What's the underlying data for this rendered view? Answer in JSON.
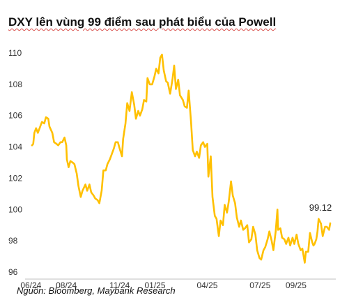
{
  "chart_data": {
    "type": "line",
    "title": "DXY lên vùng 99 điểm sau phát biểu của Powell",
    "source": "Nguồn: Bloomberg, Maybank Research",
    "color": "#FFC000",
    "axis_color": "#BFBFBF",
    "xlabel": "",
    "ylabel": "",
    "ylim": [
      96,
      110
    ],
    "y_ticks": [
      96,
      98,
      100,
      102,
      104,
      106,
      108,
      110
    ],
    "x_ticks": [
      "06/24",
      "08/24",
      "11/24",
      "01/25",
      "04/25",
      "07/25",
      "09/25"
    ],
    "x_tick_dates": [
      "2024-06-01",
      "2024-08-01",
      "2024-11-01",
      "2025-01-01",
      "2025-04-01",
      "2025-07-01",
      "2025-09-01"
    ],
    "grid": false,
    "legend": "none",
    "end_label": "99.12",
    "series": [
      {
        "points": [
          [
            "2024-06-03",
            104.1
          ],
          [
            "2024-06-05",
            104.2
          ],
          [
            "2024-06-07",
            104.9
          ],
          [
            "2024-06-10",
            105.2
          ],
          [
            "2024-06-13",
            104.9
          ],
          [
            "2024-06-17",
            105.3
          ],
          [
            "2024-06-20",
            105.6
          ],
          [
            "2024-06-24",
            105.5
          ],
          [
            "2024-06-27",
            105.9
          ],
          [
            "2024-07-01",
            105.8
          ],
          [
            "2024-07-03",
            105.3
          ],
          [
            "2024-07-08",
            104.9
          ],
          [
            "2024-07-11",
            104.3
          ],
          [
            "2024-07-15",
            104.2
          ],
          [
            "2024-07-18",
            104.1
          ],
          [
            "2024-07-22",
            104.3
          ],
          [
            "2024-07-25",
            104.3
          ],
          [
            "2024-07-29",
            104.6
          ],
          [
            "2024-08-01",
            104.1
          ],
          [
            "2024-08-02",
            103.2
          ],
          [
            "2024-08-05",
            102.7
          ],
          [
            "2024-08-08",
            103.1
          ],
          [
            "2024-08-12",
            103.0
          ],
          [
            "2024-08-15",
            102.9
          ],
          [
            "2024-08-19",
            102.3
          ],
          [
            "2024-08-22",
            101.5
          ],
          [
            "2024-08-26",
            100.8
          ],
          [
            "2024-08-29",
            101.2
          ],
          [
            "2024-09-03",
            101.6
          ],
          [
            "2024-09-06",
            101.2
          ],
          [
            "2024-09-10",
            101.6
          ],
          [
            "2024-09-13",
            101.1
          ],
          [
            "2024-09-17",
            100.9
          ],
          [
            "2024-09-20",
            100.7
          ],
          [
            "2024-09-24",
            100.6
          ],
          [
            "2024-09-27",
            100.4
          ],
          [
            "2024-10-01",
            101.2
          ],
          [
            "2024-10-04",
            102.5
          ],
          [
            "2024-10-08",
            102.5
          ],
          [
            "2024-10-11",
            102.9
          ],
          [
            "2024-10-15",
            103.2
          ],
          [
            "2024-10-18",
            103.5
          ],
          [
            "2024-10-22",
            103.9
          ],
          [
            "2024-10-25",
            104.3
          ],
          [
            "2024-10-29",
            104.3
          ],
          [
            "2024-11-01",
            103.9
          ],
          [
            "2024-11-05",
            103.4
          ],
          [
            "2024-11-07",
            104.5
          ],
          [
            "2024-11-11",
            105.5
          ],
          [
            "2024-11-14",
            106.8
          ],
          [
            "2024-11-18",
            106.3
          ],
          [
            "2024-11-22",
            107.5
          ],
          [
            "2024-11-26",
            106.7
          ],
          [
            "2024-11-29",
            105.8
          ],
          [
            "2024-12-03",
            106.3
          ],
          [
            "2024-12-06",
            106.0
          ],
          [
            "2024-12-10",
            106.4
          ],
          [
            "2024-12-13",
            107.0
          ],
          [
            "2024-12-17",
            106.9
          ],
          [
            "2024-12-19",
            108.4
          ],
          [
            "2024-12-23",
            108.0
          ],
          [
            "2024-12-27",
            108.0
          ],
          [
            "2024-12-31",
            108.5
          ],
          [
            "2025-01-03",
            109.0
          ],
          [
            "2025-01-07",
            108.7
          ],
          [
            "2025-01-10",
            109.7
          ],
          [
            "2025-01-13",
            109.9
          ],
          [
            "2025-01-16",
            108.9
          ],
          [
            "2025-01-20",
            108.2
          ],
          [
            "2025-01-23",
            108.1
          ],
          [
            "2025-01-27",
            107.4
          ],
          [
            "2025-01-31",
            108.3
          ],
          [
            "2025-02-03",
            109.2
          ],
          [
            "2025-02-06",
            107.7
          ],
          [
            "2025-02-10",
            108.3
          ],
          [
            "2025-02-13",
            107.3
          ],
          [
            "2025-02-18",
            107.0
          ],
          [
            "2025-02-21",
            106.6
          ],
          [
            "2025-02-25",
            106.5
          ],
          [
            "2025-02-28",
            107.6
          ],
          [
            "2025-03-04",
            105.6
          ],
          [
            "2025-03-07",
            103.8
          ],
          [
            "2025-03-11",
            103.4
          ],
          [
            "2025-03-14",
            103.7
          ],
          [
            "2025-03-18",
            103.3
          ],
          [
            "2025-03-21",
            104.1
          ],
          [
            "2025-03-25",
            104.3
          ],
          [
            "2025-03-28",
            104.0
          ],
          [
            "2025-04-01",
            104.2
          ],
          [
            "2025-04-03",
            102.1
          ],
          [
            "2025-04-07",
            103.4
          ],
          [
            "2025-04-10",
            100.8
          ],
          [
            "2025-04-14",
            99.6
          ],
          [
            "2025-04-17",
            99.4
          ],
          [
            "2025-04-21",
            98.3
          ],
          [
            "2025-04-24",
            99.3
          ],
          [
            "2025-04-28",
            99.0
          ],
          [
            "2025-05-01",
            100.3
          ],
          [
            "2025-05-05",
            99.8
          ],
          [
            "2025-05-08",
            100.5
          ],
          [
            "2025-05-12",
            101.8
          ],
          [
            "2025-05-15",
            100.9
          ],
          [
            "2025-05-19",
            100.4
          ],
          [
            "2025-05-22",
            99.5
          ],
          [
            "2025-05-26",
            98.9
          ],
          [
            "2025-05-29",
            99.3
          ],
          [
            "2025-06-02",
            98.7
          ],
          [
            "2025-06-05",
            98.8
          ],
          [
            "2025-06-09",
            99.0
          ],
          [
            "2025-06-12",
            97.9
          ],
          [
            "2025-06-16",
            98.1
          ],
          [
            "2025-06-19",
            98.9
          ],
          [
            "2025-06-23",
            98.4
          ],
          [
            "2025-06-26",
            97.4
          ],
          [
            "2025-06-30",
            96.9
          ],
          [
            "2025-07-03",
            96.8
          ],
          [
            "2025-07-07",
            97.4
          ],
          [
            "2025-07-10",
            97.6
          ],
          [
            "2025-07-14",
            98.1
          ],
          [
            "2025-07-17",
            98.6
          ],
          [
            "2025-07-21",
            98.0
          ],
          [
            "2025-07-24",
            97.4
          ],
          [
            "2025-07-28",
            98.6
          ],
          [
            "2025-07-31",
            100.0
          ],
          [
            "2025-08-01",
            98.7
          ],
          [
            "2025-08-05",
            98.8
          ],
          [
            "2025-08-08",
            98.2
          ],
          [
            "2025-08-12",
            98.1
          ],
          [
            "2025-08-15",
            97.8
          ],
          [
            "2025-08-19",
            98.2
          ],
          [
            "2025-08-22",
            97.7
          ],
          [
            "2025-08-26",
            98.2
          ],
          [
            "2025-08-29",
            97.8
          ],
          [
            "2025-09-02",
            98.4
          ],
          [
            "2025-09-05",
            97.8
          ],
          [
            "2025-09-09",
            97.4
          ],
          [
            "2025-09-12",
            97.5
          ],
          [
            "2025-09-16",
            96.6
          ],
          [
            "2025-09-18",
            97.3
          ],
          [
            "2025-09-22",
            97.3
          ],
          [
            "2025-09-25",
            98.5
          ],
          [
            "2025-09-29",
            97.9
          ],
          [
            "2025-10-01",
            97.7
          ],
          [
            "2025-10-03",
            97.8
          ],
          [
            "2025-10-06",
            98.1
          ],
          [
            "2025-10-08",
            98.6
          ],
          [
            "2025-10-10",
            99.4
          ],
          [
            "2025-10-14",
            99.1
          ],
          [
            "2025-10-17",
            98.3
          ],
          [
            "2025-10-21",
            98.9
          ],
          [
            "2025-10-24",
            98.9
          ],
          [
            "2025-10-28",
            98.7
          ],
          [
            "2025-10-30",
            99.12
          ]
        ]
      }
    ]
  }
}
